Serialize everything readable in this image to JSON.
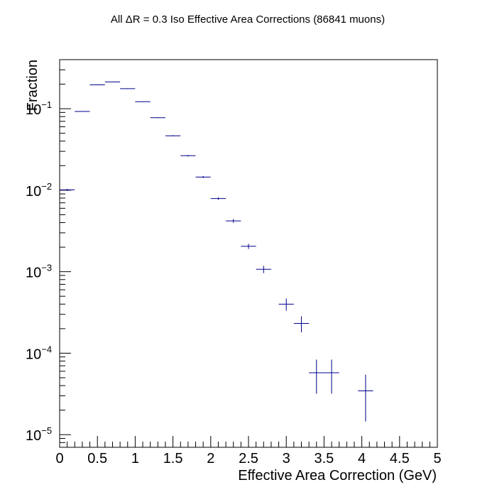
{
  "chart_data": {
    "type": "scatter",
    "title": "All ΔR = 0.3 Iso Effective Area Corrections (86841 muons)",
    "xlabel": "Effective Area Correction (GeV)",
    "ylabel": "Fraction",
    "xlim": [
      0,
      5
    ],
    "ylim": [
      7e-06,
      0.4
    ],
    "y_scale": "log",
    "grid": false,
    "legend": "none",
    "x_tick_labels": [
      "0",
      "0.5",
      "1",
      "1.5",
      "2",
      "2.5",
      "3",
      "3.5",
      "4",
      "4.5",
      "5"
    ],
    "y_tick_labels": [
      {
        "base": "10",
        "exp": "−5",
        "value": 1e-05
      },
      {
        "base": "10",
        "exp": "−4",
        "value": 0.0001
      },
      {
        "base": "10",
        "exp": "−3",
        "value": 0.001
      },
      {
        "base": "10",
        "exp": "−2",
        "value": 0.01
      },
      {
        "base": "10",
        "exp": "−1",
        "value": 0.1
      }
    ],
    "series": [
      {
        "color": "#00008b",
        "bins": [
          {
            "x_low": 0.0,
            "x_high": 0.2,
            "y": 0.0101,
            "y_err": 0.0003
          },
          {
            "x_low": 0.2,
            "x_high": 0.4,
            "y": 0.0925,
            "y_err": 0.001
          },
          {
            "x_low": 0.4,
            "x_high": 0.6,
            "y": 0.196,
            "y_err": 0.0015
          },
          {
            "x_low": 0.6,
            "x_high": 0.8,
            "y": 0.213,
            "y_err": 0.0016
          },
          {
            "x_low": 0.8,
            "x_high": 1.0,
            "y": 0.176,
            "y_err": 0.0014
          },
          {
            "x_low": 1.0,
            "x_high": 1.2,
            "y": 0.122,
            "y_err": 0.0012
          },
          {
            "x_low": 1.2,
            "x_high": 1.4,
            "y": 0.0775,
            "y_err": 0.0009
          },
          {
            "x_low": 1.4,
            "x_high": 1.6,
            "y": 0.0465,
            "y_err": 0.0007
          },
          {
            "x_low": 1.6,
            "x_high": 1.8,
            "y": 0.0265,
            "y_err": 0.00055
          },
          {
            "x_low": 1.8,
            "x_high": 2.0,
            "y": 0.0145,
            "y_err": 0.0004
          },
          {
            "x_low": 2.0,
            "x_high": 2.2,
            "y": 0.0079,
            "y_err": 0.0003
          },
          {
            "x_low": 2.2,
            "x_high": 2.4,
            "y": 0.0042,
            "y_err": 0.00022
          },
          {
            "x_low": 2.4,
            "x_high": 2.6,
            "y": 0.00205,
            "y_err": 0.00015
          },
          {
            "x_low": 2.6,
            "x_high": 2.8,
            "y": 0.00107,
            "y_err": 0.00011
          },
          {
            "x_low": 2.9,
            "x_high": 3.1,
            "y": 0.0004,
            "y_err": 6.8e-05
          },
          {
            "x_low": 3.1,
            "x_high": 3.3,
            "y": 0.000232,
            "y_err": 5.2e-05
          },
          {
            "x_low": 3.3,
            "x_high": 3.5,
            "y": 5.76e-05,
            "y_err": 2.58e-05
          },
          {
            "x_low": 3.5,
            "x_high": 3.7,
            "y": 5.76e-05,
            "y_err": 2.58e-05
          },
          {
            "x_low": 3.95,
            "x_high": 4.15,
            "y": 3.45e-05,
            "y_err": 2e-05
          }
        ]
      }
    ]
  }
}
